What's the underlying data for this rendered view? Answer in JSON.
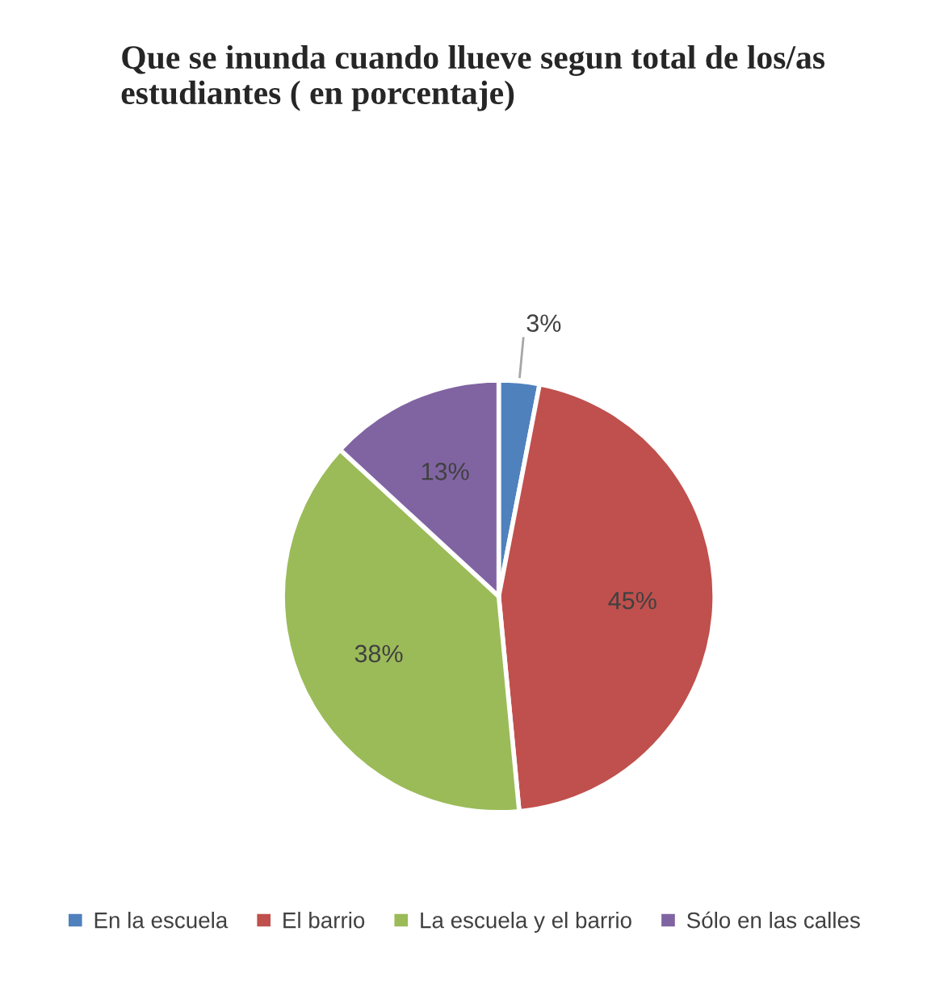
{
  "chart_data": {
    "type": "pie",
    "title": "Que se inunda cuando llueve segun total de los/as estudiantes ( en porcentaje)",
    "categories": [
      "En la escuela",
      "El barrio",
      "La escuela y el barrio",
      "Sólo en las calles"
    ],
    "values": [
      3,
      45,
      38,
      13
    ],
    "colors": [
      "#4f81bd",
      "#c0504d",
      "#9bbb59",
      "#8064a2"
    ],
    "value_labels": [
      "3%",
      "45%",
      "38%",
      "13%"
    ],
    "legend": "bottom"
  }
}
